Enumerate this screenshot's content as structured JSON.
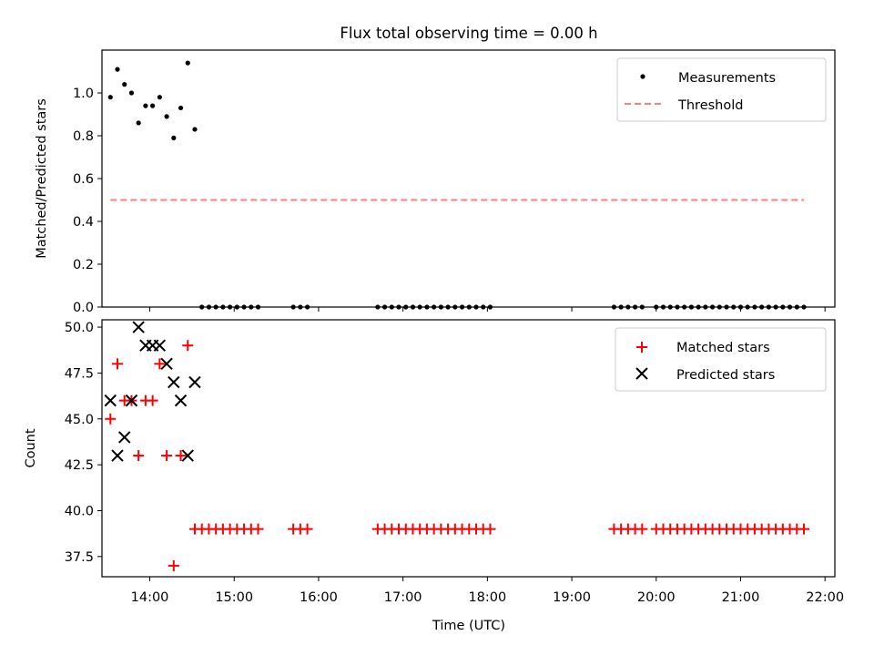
{
  "figure": {
    "title": "Flux total observing time = 0.00 h",
    "xlabel": "Time (UTC)",
    "x_ticks": [
      "14:00",
      "15:00",
      "16:00",
      "17:00",
      "18:00",
      "19:00",
      "20:00",
      "21:00",
      "22:00"
    ]
  },
  "chart_data": [
    {
      "type": "scatter",
      "ylabel": "Matched/Predicted stars",
      "xlim": [
        "13:26",
        "22:07"
      ],
      "ylim": [
        0,
        1.2
      ],
      "y_ticks": [
        "0.0",
        "0.2",
        "0.4",
        "0.6",
        "0.8",
        "1.0"
      ],
      "legend_position": "top-right",
      "legend": [
        "Measurements",
        "Threshold"
      ],
      "colors": {
        "measurements": "#000000",
        "threshold": "#ff7f7f"
      },
      "series": [
        {
          "name": "Measurements",
          "marker": "dot",
          "points": [
            [
              "13:32",
              0.98
            ],
            [
              "13:37",
              1.11
            ],
            [
              "13:42",
              1.04
            ],
            [
              "13:47",
              1.0
            ],
            [
              "13:52",
              0.86
            ],
            [
              "13:57",
              0.94
            ],
            [
              "14:02",
              0.94
            ],
            [
              "14:07",
              0.98
            ],
            [
              "14:12",
              0.89
            ],
            [
              "14:17",
              0.79
            ],
            [
              "14:22",
              0.93
            ],
            [
              "14:27",
              1.14
            ],
            [
              "14:32",
              0.83
            ],
            [
              "14:37",
              0.0
            ],
            [
              "14:42",
              0.0
            ],
            [
              "14:47",
              0.0
            ],
            [
              "14:52",
              0.0
            ],
            [
              "14:57",
              0.0
            ],
            [
              "15:02",
              0.0
            ],
            [
              "15:07",
              0.0
            ],
            [
              "15:12",
              0.0
            ],
            [
              "15:17",
              0.0
            ],
            [
              "15:42",
              0.0
            ],
            [
              "15:47",
              0.0
            ],
            [
              "15:52",
              0.0
            ],
            [
              "16:42",
              0.0
            ],
            [
              "16:47",
              0.0
            ],
            [
              "16:52",
              0.0
            ],
            [
              "16:57",
              0.0
            ],
            [
              "17:02",
              0.0
            ],
            [
              "17:07",
              0.0
            ],
            [
              "17:12",
              0.0
            ],
            [
              "17:17",
              0.0
            ],
            [
              "17:22",
              0.0
            ],
            [
              "17:27",
              0.0
            ],
            [
              "17:32",
              0.0
            ],
            [
              "17:37",
              0.0
            ],
            [
              "17:42",
              0.0
            ],
            [
              "17:47",
              0.0
            ],
            [
              "17:52",
              0.0
            ],
            [
              "17:57",
              0.0
            ],
            [
              "18:02",
              0.0
            ],
            [
              "19:30",
              0.0
            ],
            [
              "19:35",
              0.0
            ],
            [
              "19:40",
              0.0
            ],
            [
              "19:45",
              0.0
            ],
            [
              "19:50",
              0.0
            ],
            [
              "20:00",
              0.0
            ],
            [
              "20:05",
              0.0
            ],
            [
              "20:10",
              0.0
            ],
            [
              "20:15",
              0.0
            ],
            [
              "20:20",
              0.0
            ],
            [
              "20:25",
              0.0
            ],
            [
              "20:30",
              0.0
            ],
            [
              "20:35",
              0.0
            ],
            [
              "20:40",
              0.0
            ],
            [
              "20:45",
              0.0
            ],
            [
              "20:50",
              0.0
            ],
            [
              "20:55",
              0.0
            ],
            [
              "21:00",
              0.0
            ],
            [
              "21:05",
              0.0
            ],
            [
              "21:10",
              0.0
            ],
            [
              "21:15",
              0.0
            ],
            [
              "21:20",
              0.0
            ],
            [
              "21:25",
              0.0
            ],
            [
              "21:30",
              0.0
            ],
            [
              "21:35",
              0.0
            ],
            [
              "21:40",
              0.0
            ],
            [
              "21:45",
              0.0
            ]
          ]
        },
        {
          "name": "Threshold",
          "style": "dashed",
          "points": [
            [
              "13:32",
              0.5
            ],
            [
              "21:45",
              0.5
            ]
          ]
        }
      ]
    },
    {
      "type": "scatter",
      "ylabel": "Count",
      "xlim": [
        "13:26",
        "22:07"
      ],
      "ylim": [
        36.4,
        50.4
      ],
      "y_ticks": [
        "37.5",
        "40.0",
        "42.5",
        "45.0",
        "47.5",
        "50.0"
      ],
      "legend_position": "top-right",
      "legend": [
        "Matched stars",
        "Predicted stars"
      ],
      "colors": {
        "matched": "#ff0000",
        "predicted": "#000000"
      },
      "series": [
        {
          "name": "Matched stars",
          "marker": "plus",
          "points": [
            [
              "13:32",
              45
            ],
            [
              "13:37",
              48
            ],
            [
              "13:42",
              46
            ],
            [
              "13:47",
              46
            ],
            [
              "13:52",
              43
            ],
            [
              "13:57",
              46
            ],
            [
              "14:02",
              46
            ],
            [
              "14:07",
              48
            ],
            [
              "14:12",
              43
            ],
            [
              "14:17",
              37
            ],
            [
              "14:22",
              43
            ],
            [
              "14:27",
              49
            ],
            [
              "14:32",
              39
            ],
            [
              "14:37",
              39
            ],
            [
              "14:42",
              39
            ],
            [
              "14:47",
              39
            ],
            [
              "14:52",
              39
            ],
            [
              "14:57",
              39
            ],
            [
              "15:02",
              39
            ],
            [
              "15:07",
              39
            ],
            [
              "15:12",
              39
            ],
            [
              "15:17",
              39
            ],
            [
              "15:42",
              39
            ],
            [
              "15:47",
              39
            ],
            [
              "15:52",
              39
            ],
            [
              "16:42",
              39
            ],
            [
              "16:47",
              39
            ],
            [
              "16:52",
              39
            ],
            [
              "16:57",
              39
            ],
            [
              "17:02",
              39
            ],
            [
              "17:07",
              39
            ],
            [
              "17:12",
              39
            ],
            [
              "17:17",
              39
            ],
            [
              "17:22",
              39
            ],
            [
              "17:27",
              39
            ],
            [
              "17:32",
              39
            ],
            [
              "17:37",
              39
            ],
            [
              "17:42",
              39
            ],
            [
              "17:47",
              39
            ],
            [
              "17:52",
              39
            ],
            [
              "17:57",
              39
            ],
            [
              "18:02",
              39
            ],
            [
              "19:30",
              39
            ],
            [
              "19:35",
              39
            ],
            [
              "19:40",
              39
            ],
            [
              "19:45",
              39
            ],
            [
              "19:50",
              39
            ],
            [
              "20:00",
              39
            ],
            [
              "20:05",
              39
            ],
            [
              "20:10",
              39
            ],
            [
              "20:15",
              39
            ],
            [
              "20:20",
              39
            ],
            [
              "20:25",
              39
            ],
            [
              "20:30",
              39
            ],
            [
              "20:35",
              39
            ],
            [
              "20:40",
              39
            ],
            [
              "20:45",
              39
            ],
            [
              "20:50",
              39
            ],
            [
              "20:55",
              39
            ],
            [
              "21:00",
              39
            ],
            [
              "21:05",
              39
            ],
            [
              "21:10",
              39
            ],
            [
              "21:15",
              39
            ],
            [
              "21:20",
              39
            ],
            [
              "21:25",
              39
            ],
            [
              "21:30",
              39
            ],
            [
              "21:35",
              39
            ],
            [
              "21:40",
              39
            ],
            [
              "21:45",
              39
            ]
          ]
        },
        {
          "name": "Predicted stars",
          "marker": "x",
          "points": [
            [
              "13:32",
              46
            ],
            [
              "13:37",
              43
            ],
            [
              "13:42",
              44
            ],
            [
              "13:47",
              46
            ],
            [
              "13:52",
              50
            ],
            [
              "13:57",
              49
            ],
            [
              "14:02",
              49
            ],
            [
              "14:07",
              49
            ],
            [
              "14:12",
              48
            ],
            [
              "14:17",
              47
            ],
            [
              "14:22",
              46
            ],
            [
              "14:27",
              43
            ],
            [
              "14:32",
              47
            ]
          ]
        }
      ]
    }
  ]
}
